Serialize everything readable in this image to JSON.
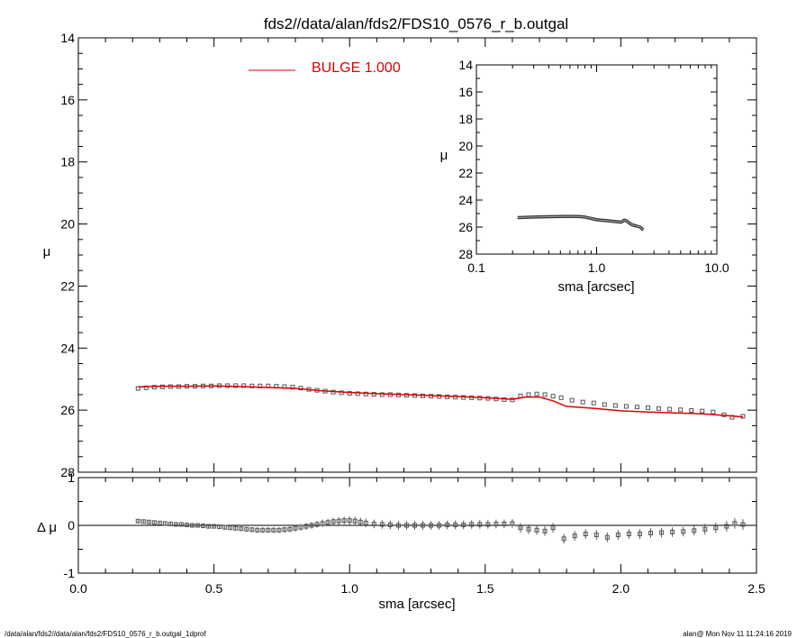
{
  "chart_data": [
    {
      "id": "main",
      "type": "line",
      "title": "fds2//data/alan/fds2/FDS10_0576_r_b.outgal",
      "xlabel": "sma [arcsec]",
      "ylabel": "μ",
      "xlim": [
        0.0,
        2.5
      ],
      "ylim": [
        28,
        14
      ],
      "y_inverted": true,
      "xticks": [
        "0.0",
        "0.5",
        "1.0",
        "1.5",
        "2.0",
        "2.5"
      ],
      "yticks": [
        "14",
        "16",
        "18",
        "20",
        "22",
        "24",
        "26",
        "28"
      ],
      "legend": {
        "position": "top",
        "entries": [
          {
            "label": "BULGE  1.000",
            "color": "#e00000"
          }
        ]
      },
      "series": [
        {
          "name": "BULGE",
          "kind": "line",
          "color": "#e00000",
          "x": [
            0.22,
            0.3,
            0.4,
            0.5,
            0.6,
            0.7,
            0.8,
            0.9,
            1.0,
            1.1,
            1.2,
            1.3,
            1.4,
            1.5,
            1.6,
            1.65,
            1.7,
            1.75,
            1.8,
            1.9,
            2.0,
            2.1,
            2.2,
            2.3,
            2.4,
            2.45
          ],
          "y": [
            25.25,
            25.23,
            25.23,
            25.22,
            25.24,
            25.27,
            25.3,
            25.38,
            25.43,
            25.47,
            25.5,
            25.53,
            25.56,
            25.6,
            25.65,
            25.58,
            25.58,
            25.7,
            25.88,
            25.94,
            26.02,
            26.06,
            26.09,
            26.12,
            26.18,
            26.22
          ]
        },
        {
          "name": "data",
          "kind": "points",
          "color": "#555555",
          "x": [
            0.22,
            0.25,
            0.28,
            0.31,
            0.34,
            0.37,
            0.4,
            0.43,
            0.46,
            0.49,
            0.52,
            0.55,
            0.58,
            0.61,
            0.64,
            0.67,
            0.7,
            0.73,
            0.76,
            0.79,
            0.82,
            0.85,
            0.88,
            0.91,
            0.94,
            0.97,
            1.0,
            1.03,
            1.06,
            1.09,
            1.12,
            1.15,
            1.18,
            1.21,
            1.24,
            1.27,
            1.3,
            1.33,
            1.36,
            1.39,
            1.42,
            1.45,
            1.48,
            1.51,
            1.54,
            1.57,
            1.6,
            1.63,
            1.66,
            1.69,
            1.72,
            1.75,
            1.78,
            1.82,
            1.86,
            1.9,
            1.94,
            1.98,
            2.02,
            2.06,
            2.1,
            2.14,
            2.18,
            2.22,
            2.26,
            2.3,
            2.34,
            2.38,
            2.41,
            2.45
          ],
          "y": [
            25.3,
            25.28,
            25.26,
            25.25,
            25.24,
            25.24,
            25.23,
            25.23,
            25.22,
            25.22,
            25.21,
            25.21,
            25.21,
            25.21,
            25.22,
            25.22,
            25.22,
            25.23,
            25.24,
            25.26,
            25.29,
            25.33,
            25.36,
            25.39,
            25.42,
            25.44,
            25.46,
            25.47,
            25.48,
            25.49,
            25.5,
            25.5,
            25.51,
            25.52,
            25.53,
            25.54,
            25.55,
            25.56,
            25.57,
            25.58,
            25.59,
            25.6,
            25.61,
            25.62,
            25.64,
            25.66,
            25.67,
            25.54,
            25.5,
            25.48,
            25.5,
            25.55,
            25.6,
            25.68,
            25.74,
            25.77,
            25.82,
            25.85,
            25.88,
            25.9,
            25.92,
            25.95,
            25.97,
            25.99,
            26.01,
            26.03,
            26.06,
            26.15,
            26.23,
            26.2
          ]
        }
      ]
    },
    {
      "id": "inset",
      "type": "line",
      "title": "",
      "xlabel": "sma [arcsec]",
      "ylabel": "μ",
      "x_scale": "log",
      "xlim": [
        0.1,
        10.0
      ],
      "ylim": [
        28,
        14
      ],
      "y_inverted": true,
      "xticks": [
        "0.1",
        "1.0",
        "10.0"
      ],
      "yticks": [
        "14",
        "16",
        "18",
        "20",
        "22",
        "24",
        "26",
        "28"
      ],
      "series": [
        {
          "name": "data",
          "kind": "line",
          "color": "#333333",
          "x": [
            0.22,
            0.3,
            0.4,
            0.5,
            0.6,
            0.7,
            0.8,
            0.9,
            1.0,
            1.1,
            1.2,
            1.3,
            1.4,
            1.5,
            1.6,
            1.7,
            1.8,
            1.9,
            2.0,
            2.1,
            2.2,
            2.3,
            2.4,
            2.45
          ],
          "y": [
            25.3,
            25.26,
            25.23,
            25.22,
            25.21,
            25.22,
            25.26,
            25.36,
            25.45,
            25.49,
            25.52,
            25.55,
            25.58,
            25.61,
            25.64,
            25.48,
            25.58,
            25.75,
            25.85,
            25.9,
            25.95,
            26.0,
            26.15,
            26.2
          ]
        }
      ]
    },
    {
      "id": "residual",
      "type": "scatter",
      "title": "",
      "xlabel": "sma [arcsec]",
      "ylabel": "Δ μ",
      "xlim": [
        0.0,
        2.5
      ],
      "ylim": [
        -1,
        1
      ],
      "yticks": [
        "1",
        "0",
        "-1"
      ],
      "series": [
        {
          "name": "residual",
          "kind": "errorbar",
          "color": "#555555",
          "x": [
            0.22,
            0.24,
            0.26,
            0.28,
            0.3,
            0.32,
            0.34,
            0.36,
            0.38,
            0.4,
            0.42,
            0.44,
            0.46,
            0.48,
            0.5,
            0.52,
            0.54,
            0.56,
            0.58,
            0.6,
            0.62,
            0.64,
            0.66,
            0.68,
            0.7,
            0.72,
            0.74,
            0.76,
            0.78,
            0.8,
            0.82,
            0.84,
            0.86,
            0.88,
            0.9,
            0.92,
            0.94,
            0.96,
            0.98,
            1.0,
            1.02,
            1.04,
            1.06,
            1.09,
            1.12,
            1.15,
            1.18,
            1.21,
            1.24,
            1.27,
            1.3,
            1.33,
            1.36,
            1.39,
            1.42,
            1.45,
            1.48,
            1.51,
            1.54,
            1.57,
            1.6,
            1.63,
            1.66,
            1.69,
            1.72,
            1.75,
            1.79,
            1.83,
            1.87,
            1.91,
            1.95,
            1.99,
            2.03,
            2.07,
            2.11,
            2.15,
            2.19,
            2.23,
            2.27,
            2.31,
            2.35,
            2.39,
            2.42,
            2.45
          ],
          "y": [
            0.09,
            0.08,
            0.07,
            0.06,
            0.05,
            0.04,
            0.03,
            0.02,
            0.02,
            0.01,
            0.0,
            0.0,
            -0.01,
            -0.02,
            -0.02,
            -0.03,
            -0.04,
            -0.05,
            -0.06,
            -0.07,
            -0.08,
            -0.09,
            -0.1,
            -0.1,
            -0.1,
            -0.1,
            -0.1,
            -0.09,
            -0.08,
            -0.06,
            -0.04,
            -0.02,
            0.0,
            0.02,
            0.04,
            0.06,
            0.08,
            0.09,
            0.1,
            0.1,
            0.09,
            0.07,
            0.05,
            0.03,
            0.02,
            0.01,
            0.0,
            0.0,
            0.0,
            0.0,
            0.0,
            0.0,
            0.01,
            0.01,
            0.01,
            0.02,
            0.02,
            0.02,
            0.03,
            0.03,
            0.04,
            -0.05,
            -0.08,
            -0.1,
            -0.12,
            -0.05,
            -0.28,
            -0.22,
            -0.18,
            -0.2,
            -0.25,
            -0.2,
            -0.18,
            -0.18,
            -0.16,
            -0.15,
            -0.14,
            -0.13,
            -0.11,
            -0.08,
            -0.05,
            -0.02,
            0.04,
            0.02
          ],
          "err": [
            0.03,
            0.03,
            0.03,
            0.03,
            0.03,
            0.03,
            0.03,
            0.03,
            0.03,
            0.04,
            0.04,
            0.04,
            0.04,
            0.04,
            0.04,
            0.04,
            0.05,
            0.05,
            0.05,
            0.05,
            0.05,
            0.05,
            0.06,
            0.06,
            0.06,
            0.06,
            0.06,
            0.06,
            0.06,
            0.07,
            0.07,
            0.07,
            0.07,
            0.07,
            0.08,
            0.08,
            0.08,
            0.08,
            0.08,
            0.09,
            0.09,
            0.09,
            0.09,
            0.09,
            0.09,
            0.09,
            0.09,
            0.09,
            0.09,
            0.09,
            0.09,
            0.09,
            0.09,
            0.09,
            0.09,
            0.09,
            0.09,
            0.09,
            0.09,
            0.09,
            0.09,
            0.1,
            0.1,
            0.1,
            0.1,
            0.1,
            0.1,
            0.1,
            0.1,
            0.1,
            0.1,
            0.1,
            0.1,
            0.1,
            0.1,
            0.1,
            0.1,
            0.1,
            0.1,
            0.11,
            0.11,
            0.11,
            0.11,
            0.11
          ]
        }
      ]
    }
  ],
  "footer": {
    "left": "/data/alan/fds2//data/alan/fds2/FDS10_0576_r_b.outgal_1dprof",
    "right": "alan@  Mon Nov 11 11:24:16 2019"
  },
  "colors": {
    "model": "#e00000",
    "data": "#555555",
    "axis": "#000000"
  }
}
